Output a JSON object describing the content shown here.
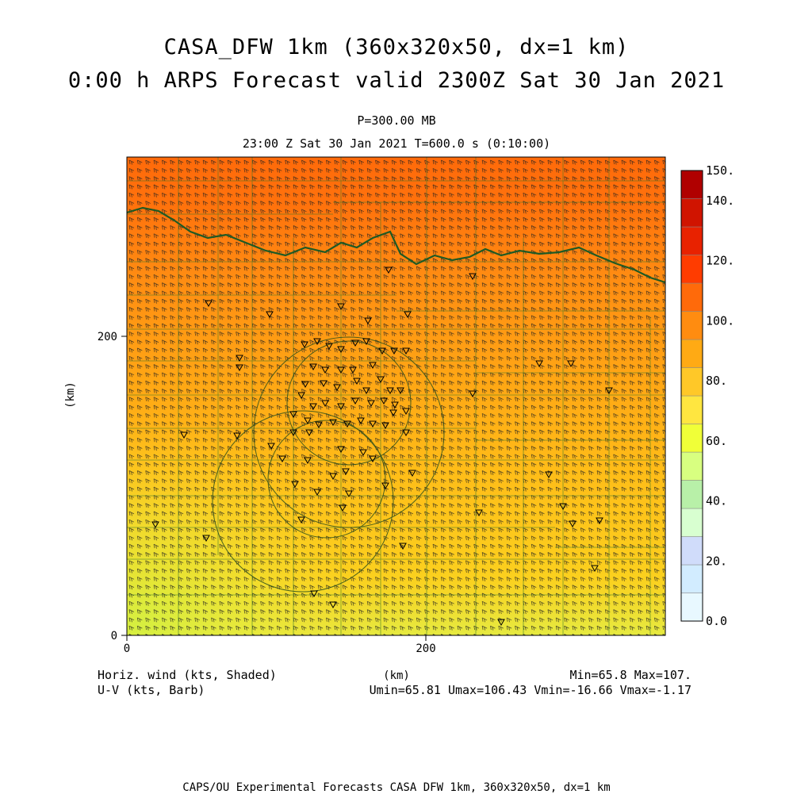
{
  "header": {
    "title_line1": "CASA_DFW 1km (360x320x50, dx=1 km)",
    "title_line2": "0:00 h ARPS Forecast valid 2300Z Sat 30 Jan 2021",
    "level": "P=300.00 MB",
    "time_info": "23:00 Z Sat 30 Jan 2021   T=600.0 s (0:10:00)"
  },
  "axes": {
    "x_label": "(km)",
    "y_label": "(km)",
    "x_ticks": [
      "0",
      "200"
    ],
    "y_ticks": [
      "0",
      "200"
    ],
    "x_range_km": [
      0,
      360
    ],
    "y_range_km": [
      0,
      320
    ]
  },
  "colorbar": {
    "labels": [
      "0.0",
      "20.",
      "40.",
      "60.",
      "80.",
      "100.",
      "120.",
      "140.",
      "150."
    ],
    "colors": [
      "#e8f8ff",
      "#d2ecff",
      "#d0dcfa",
      "#d8ffd0",
      "#b8f0a8",
      "#d8ff80",
      "#f0ff38",
      "#ffe640",
      "#ffc828",
      "#ffaa14",
      "#ff8c10",
      "#ff6a0a",
      "#ff3c00",
      "#e82200",
      "#d01400",
      "#b00000"
    ],
    "range": [
      0,
      150
    ]
  },
  "legend": {
    "shaded_field": "Horiz. wind (kts, Shaded)",
    "barb_field": "U-V (kts, Barb)",
    "min_max": "Min=65.8 Max=107.",
    "uv_stats": "Umin=65.81 Umax=106.43 Vmin=-16.66 Vmax=-1.17"
  },
  "field": {
    "min": 65.8,
    "max": 107,
    "umin": 65.81,
    "umax": 106.43,
    "vmin": -16.66,
    "vmax": -1.17
  },
  "footer": {
    "text": "CAPS/OU Experimental Forecasts  CASA DFW 1km, 360x320x50, dx=1 km"
  }
}
